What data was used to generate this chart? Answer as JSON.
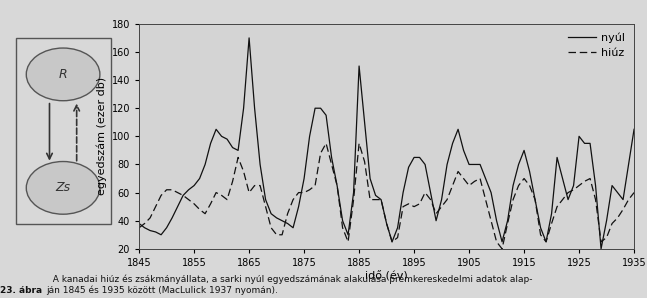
{
  "title": "",
  "xlabel": "idő (év)",
  "ylabel": "egyedszám (ezer db)",
  "xlim": [
    1845,
    1935
  ],
  "ylim": [
    20,
    180
  ],
  "yticks": [
    20,
    40,
    60,
    80,
    100,
    120,
    140,
    160,
    180
  ],
  "xticks": [
    1845,
    1855,
    1865,
    1875,
    1885,
    1895,
    1905,
    1915,
    1925,
    1935
  ],
  "legend_nyul": "nyúl",
  "legend_hiuz": "hiúz",
  "background_color": "#d8d8d8",
  "plot_bg": "#d4d4d4",
  "nyul": {
    "years": [
      1845,
      1846,
      1847,
      1848,
      1849,
      1850,
      1851,
      1852,
      1853,
      1854,
      1855,
      1856,
      1857,
      1858,
      1859,
      1860,
      1861,
      1862,
      1863,
      1864,
      1865,
      1866,
      1867,
      1868,
      1869,
      1870,
      1871,
      1872,
      1873,
      1874,
      1875,
      1876,
      1877,
      1878,
      1879,
      1880,
      1881,
      1882,
      1883,
      1884,
      1885,
      1886,
      1887,
      1888,
      1889,
      1890,
      1891,
      1892,
      1893,
      1894,
      1895,
      1896,
      1897,
      1898,
      1899,
      1900,
      1901,
      1902,
      1903,
      1904,
      1905,
      1906,
      1907,
      1908,
      1909,
      1910,
      1911,
      1912,
      1913,
      1914,
      1915,
      1916,
      1917,
      1918,
      1919,
      1920,
      1921,
      1922,
      1923,
      1924,
      1925,
      1926,
      1927,
      1928,
      1929,
      1930,
      1931,
      1932,
      1933,
      1934,
      1935
    ],
    "values": [
      38,
      35,
      33,
      32,
      30,
      35,
      42,
      50,
      58,
      62,
      65,
      70,
      80,
      95,
      105,
      100,
      98,
      92,
      90,
      120,
      170,
      120,
      80,
      55,
      45,
      42,
      40,
      38,
      35,
      50,
      70,
      100,
      120,
      120,
      115,
      85,
      65,
      40,
      30,
      60,
      150,
      110,
      70,
      58,
      55,
      38,
      25,
      35,
      60,
      78,
      85,
      85,
      80,
      60,
      40,
      55,
      80,
      95,
      105,
      90,
      80,
      80,
      80,
      70,
      60,
      40,
      25,
      40,
      65,
      80,
      90,
      75,
      55,
      35,
      25,
      45,
      85,
      70,
      55,
      65,
      100,
      95,
      95,
      65,
      20,
      40,
      65,
      60,
      55,
      80,
      105
    ]
  },
  "hiuz": {
    "years": [
      1845,
      1846,
      1847,
      1848,
      1849,
      1850,
      1851,
      1852,
      1853,
      1854,
      1855,
      1856,
      1857,
      1858,
      1859,
      1860,
      1861,
      1862,
      1863,
      1864,
      1865,
      1866,
      1867,
      1868,
      1869,
      1870,
      1871,
      1872,
      1873,
      1874,
      1875,
      1876,
      1877,
      1878,
      1879,
      1880,
      1881,
      1882,
      1883,
      1884,
      1885,
      1886,
      1887,
      1888,
      1889,
      1890,
      1891,
      1892,
      1893,
      1894,
      1895,
      1896,
      1897,
      1898,
      1899,
      1900,
      1901,
      1902,
      1903,
      1904,
      1905,
      1906,
      1907,
      1908,
      1909,
      1910,
      1911,
      1912,
      1913,
      1914,
      1915,
      1916,
      1917,
      1918,
      1919,
      1920,
      1921,
      1922,
      1923,
      1924,
      1925,
      1926,
      1927,
      1928,
      1929,
      1930,
      1931,
      1932,
      1933,
      1934,
      1935
    ],
    "values": [
      35,
      38,
      42,
      50,
      58,
      62,
      62,
      60,
      58,
      55,
      52,
      48,
      45,
      52,
      60,
      58,
      55,
      68,
      85,
      75,
      60,
      65,
      65,
      50,
      35,
      30,
      30,
      45,
      55,
      60,
      60,
      62,
      65,
      88,
      95,
      80,
      65,
      35,
      25,
      55,
      95,
      82,
      55,
      55,
      55,
      38,
      25,
      28,
      50,
      52,
      50,
      52,
      60,
      55,
      45,
      50,
      55,
      65,
      75,
      70,
      65,
      68,
      70,
      55,
      40,
      25,
      20,
      38,
      55,
      65,
      70,
      65,
      55,
      30,
      25,
      38,
      50,
      55,
      60,
      62,
      65,
      68,
      70,
      55,
      25,
      28,
      38,
      42,
      48,
      55,
      60
    ]
  },
  "caption_bold": "23. ábra",
  "caption_normal": "  A kanadai hiúz és zsákmányállata, a sarki nyúl egyedszámának alakulása prémkereskedelmi adatok alap-\nján 1845 és 1935 között (MacLulick 1937 nyomán).",
  "line_color": "#111111",
  "diagram_box_color": "#c8c8c8"
}
